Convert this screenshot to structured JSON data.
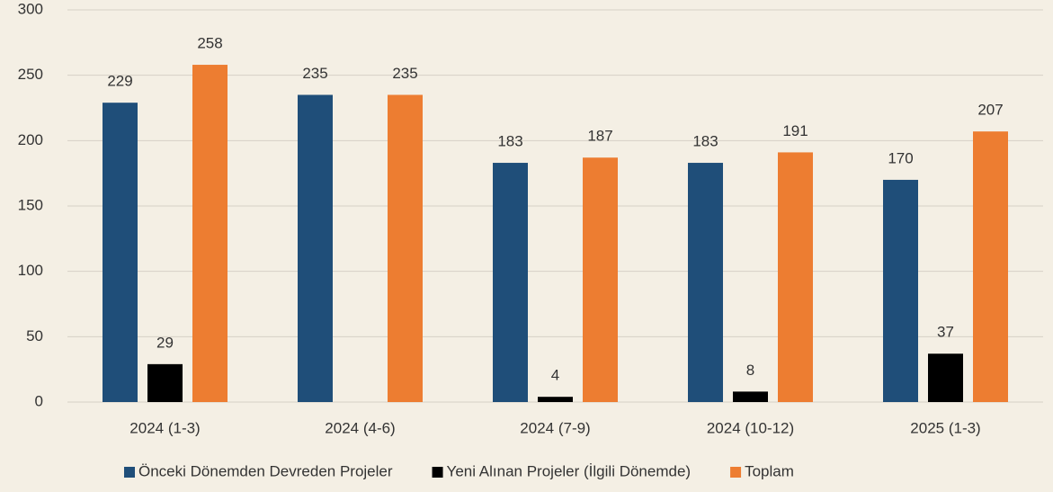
{
  "chart_data": {
    "type": "bar",
    "categories": [
      "2024 (1-3)",
      "2024 (4-6)",
      "2024 (7-9)",
      "2024 (10-12)",
      "2025 (1-3)"
    ],
    "series": [
      {
        "name": "Önceki Dönemden Devreden Projeler",
        "color": "#1f4e79",
        "values": [
          229,
          235,
          183,
          183,
          170
        ]
      },
      {
        "name": "Yeni Alınan Projeler (İlgili Dönemde)",
        "color": "#000000",
        "values": [
          29,
          null,
          4,
          8,
          37
        ]
      },
      {
        "name": "Toplam",
        "color": "#ed7d31",
        "values": [
          258,
          235,
          187,
          191,
          207
        ]
      }
    ],
    "ylim": [
      0,
      300
    ],
    "yticks": [
      0,
      50,
      100,
      150,
      200,
      250,
      300
    ],
    "grid": true,
    "legend": "bottom"
  }
}
